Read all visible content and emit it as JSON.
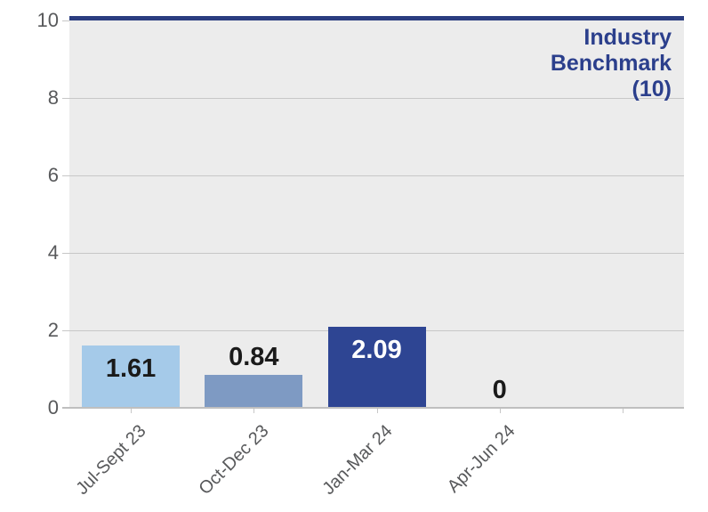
{
  "chart_data": {
    "type": "bar",
    "title": "",
    "xlabel": "",
    "ylabel": "",
    "categories": [
      "Jul-Sept 23",
      "Oct-Dec 23",
      "Jan-Mar 24",
      "Apr-Jun 24"
    ],
    "values": [
      1.61,
      0.84,
      2.09,
      0
    ],
    "value_labels": [
      "1.61",
      "0.84",
      "2.09",
      "0"
    ],
    "bar_colors": [
      "#a5cae9",
      "#7e9ac3",
      "#2e4593",
      "#a5cae9"
    ],
    "value_label_placement": [
      "inside",
      "outside",
      "inside",
      "outside"
    ],
    "value_label_colors": [
      "#1a1a1a",
      "#1a1a1a",
      "#ffffff",
      "#1a1a1a"
    ],
    "ylim": [
      0,
      10
    ],
    "y_ticks": [
      0,
      2,
      4,
      6,
      8,
      10
    ],
    "x_slots": 5,
    "grid": true,
    "legend": false,
    "benchmark": {
      "value": 10,
      "label": "Industry Benchmark (10)",
      "label_lines": [
        "Industry",
        "Benchmark",
        "(10)"
      ],
      "line_color": "#2b3d80",
      "text_color": "#2b3f8c"
    },
    "colors": {
      "plot_bg": "#ececec",
      "gridline": "#c7c7c7",
      "axis_line": "#bfbfbf",
      "tick": "#c7c7c7",
      "axis_text": "#58595b"
    }
  }
}
